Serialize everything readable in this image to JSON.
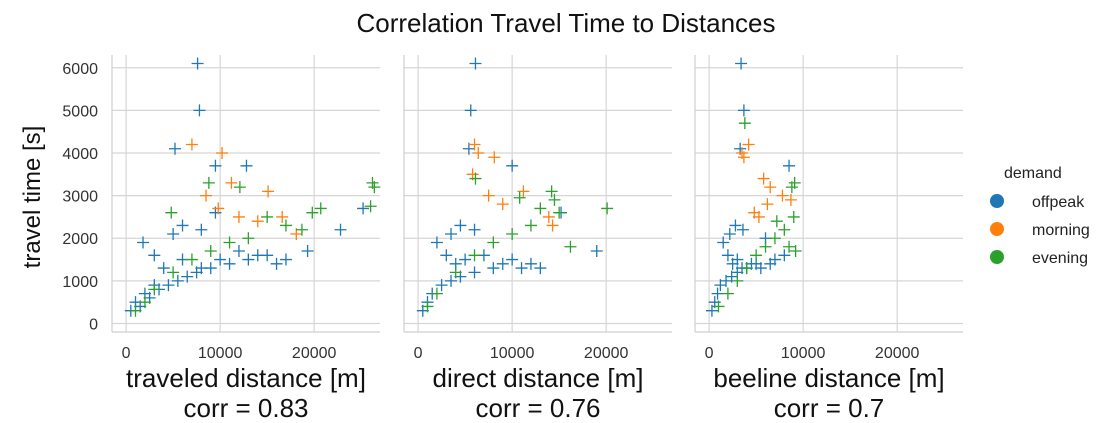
{
  "chart_data": {
    "type": "scatter",
    "title": "Correlation Travel Time to Distances",
    "ylabel": "travel time [s]",
    "ylim": [
      -200,
      6300
    ],
    "xlim": [
      -1500,
      27000
    ],
    "yticks": [
      0,
      1000,
      2000,
      3000,
      4000,
      5000,
      6000
    ],
    "xticks": [
      0,
      10000,
      20000
    ],
    "grid": true,
    "marker": "+",
    "legend": {
      "title": "demand",
      "placement": "right",
      "entries": [
        {
          "name": "offpeak",
          "color": "#1f77b4"
        },
        {
          "name": "morning",
          "color": "#ff7f0e"
        },
        {
          "name": "evening",
          "color": "#2ca02c"
        }
      ]
    },
    "panels": [
      {
        "xlabel": "traveled distance [m]",
        "corr_label": "corr = 0.83",
        "series": [
          {
            "name": "offpeak",
            "points": [
              [
                7600,
                6100
              ],
              [
                7800,
                5000
              ],
              [
                5200,
                4100
              ],
              [
                9500,
                3700
              ],
              [
                12800,
                3700
              ],
              [
                22800,
                2200
              ],
              [
                19300,
                1700
              ],
              [
                25200,
                2700
              ],
              [
                1800,
                1900
              ],
              [
                3000,
                1600
              ],
              [
                4000,
                1300
              ],
              [
                6000,
                1500
              ],
              [
                8000,
                1300
              ],
              [
                10000,
                1500
              ],
              [
                12000,
                1700
              ],
              [
                14000,
                1600
              ],
              [
                16000,
                1400
              ],
              [
                1000,
                500
              ],
              [
                2000,
                700
              ],
              [
                3000,
                900
              ],
              [
                500,
                300
              ],
              [
                1500,
                400
              ],
              [
                2500,
                600
              ],
              [
                3500,
                800
              ],
              [
                4500,
                900
              ],
              [
                5500,
                1000
              ],
              [
                6500,
                1100
              ],
              [
                7500,
                1200
              ],
              [
                9000,
                1300
              ],
              [
                11000,
                1400
              ],
              [
                13000,
                1500
              ],
              [
                15000,
                1600
              ],
              [
                17000,
                1500
              ],
              [
                5000,
                2100
              ],
              [
                6000,
                2300
              ],
              [
                8000,
                2200
              ],
              [
                9500,
                2600
              ]
            ]
          },
          {
            "name": "morning",
            "points": [
              [
                7000,
                4200
              ],
              [
                10200,
                4000
              ],
              [
                11200,
                3300
              ],
              [
                15100,
                3100
              ],
              [
                16600,
                2500
              ],
              [
                18100,
                2100
              ],
              [
                12000,
                2500
              ],
              [
                8500,
                3000
              ],
              [
                9800,
                2700
              ],
              [
                14000,
                2400
              ]
            ]
          },
          {
            "name": "evening",
            "points": [
              [
                26200,
                3300
              ],
              [
                26400,
                3200
              ],
              [
                26000,
                2750
              ],
              [
                20700,
                2700
              ],
              [
                8800,
                3300
              ],
              [
                12100,
                3200
              ],
              [
                4800,
                2600
              ],
              [
                17000,
                2300
              ],
              [
                18700,
                2200
              ],
              [
                15000,
                2500
              ],
              [
                13000,
                2000
              ],
              [
                11000,
                1900
              ],
              [
                9000,
                1700
              ],
              [
                7000,
                1500
              ],
              [
                5000,
                1200
              ],
              [
                3000,
                800
              ],
              [
                2000,
                500
              ],
              [
                1000,
                300
              ],
              [
                19800,
                2600
              ]
            ]
          }
        ]
      },
      {
        "xlabel": "direct distance [m]",
        "corr_label": "corr = 0.76",
        "series": [
          {
            "name": "offpeak",
            "points": [
              [
                6100,
                6100
              ],
              [
                5600,
                5000
              ],
              [
                5400,
                4100
              ],
              [
                10000,
                3700
              ],
              [
                19000,
                1700
              ],
              [
                15200,
                2600
              ],
              [
                2000,
                1900
              ],
              [
                3000,
                1600
              ],
              [
                4000,
                1400
              ],
              [
                5000,
                1500
              ],
              [
                7000,
                1600
              ],
              [
                9000,
                1400
              ],
              [
                11000,
                1300
              ],
              [
                500,
                300
              ],
              [
                1000,
                500
              ],
              [
                1500,
                700
              ],
              [
                2500,
                900
              ],
              [
                3500,
                1000
              ],
              [
                4500,
                1100
              ],
              [
                6000,
                1200
              ],
              [
                8000,
                1300
              ],
              [
                10000,
                1500
              ],
              [
                12000,
                1400
              ],
              [
                13000,
                1300
              ],
              [
                3500,
                2100
              ],
              [
                4500,
                2300
              ],
              [
                6000,
                2200
              ]
            ]
          },
          {
            "name": "morning",
            "points": [
              [
                6000,
                4200
              ],
              [
                6400,
                4000
              ],
              [
                8100,
                3900
              ],
              [
                5800,
                3500
              ],
              [
                11200,
                3100
              ],
              [
                13900,
                2500
              ],
              [
                14300,
                2300
              ],
              [
                9000,
                2800
              ],
              [
                7500,
                3000
              ]
            ]
          },
          {
            "name": "evening",
            "points": [
              [
                20100,
                2700
              ],
              [
                14500,
                2900
              ],
              [
                10800,
                2950
              ],
              [
                14200,
                3100
              ],
              [
                6100,
                3400
              ],
              [
                16200,
                1800
              ],
              [
                15000,
                2600
              ],
              [
                12000,
                2300
              ],
              [
                10000,
                2100
              ],
              [
                8000,
                1900
              ],
              [
                6000,
                1600
              ],
              [
                4000,
                1200
              ],
              [
                2000,
                700
              ],
              [
                1000,
                400
              ],
              [
                13000,
                2700
              ]
            ]
          }
        ]
      },
      {
        "xlabel": "beeline distance [m]",
        "corr_label": "corr = 0.7",
        "series": [
          {
            "name": "offpeak",
            "points": [
              [
                3400,
                6100
              ],
              [
                3700,
                5000
              ],
              [
                3300,
                4100
              ],
              [
                8500,
                3700
              ],
              [
                6000,
                2000
              ],
              [
                1500,
                1900
              ],
              [
                2000,
                1600
              ],
              [
                2500,
                1400
              ],
              [
                3000,
                1500
              ],
              [
                3500,
                1300
              ],
              [
                4500,
                1400
              ],
              [
                5500,
                1300
              ],
              [
                6500,
                1400
              ],
              [
                300,
                300
              ],
              [
                600,
                500
              ],
              [
                900,
                700
              ],
              [
                1200,
                900
              ],
              [
                1800,
                1000
              ],
              [
                2400,
                1100
              ],
              [
                3000,
                1200
              ],
              [
                4000,
                1300
              ],
              [
                5000,
                1400
              ],
              [
                7000,
                1500
              ],
              [
                8000,
                1600
              ],
              [
                2200,
                2100
              ],
              [
                2800,
                2300
              ],
              [
                3600,
                2200
              ]
            ]
          },
          {
            "name": "morning",
            "points": [
              [
                4200,
                4200
              ],
              [
                3500,
                4000
              ],
              [
                3700,
                3900
              ],
              [
                5800,
                3400
              ],
              [
                6200,
                2800
              ],
              [
                6500,
                3200
              ],
              [
                7800,
                3000
              ],
              [
                8700,
                2900
              ],
              [
                4800,
                2600
              ],
              [
                5300,
                2500
              ]
            ]
          },
          {
            "name": "evening",
            "points": [
              [
                3800,
                4700
              ],
              [
                9100,
                3300
              ],
              [
                8800,
                3200
              ],
              [
                9000,
                2500
              ],
              [
                8000,
                2200
              ],
              [
                7000,
                2000
              ],
              [
                6000,
                1800
              ],
              [
                5000,
                1600
              ],
              [
                4000,
                1300
              ],
              [
                3000,
                1000
              ],
              [
                2000,
                700
              ],
              [
                1000,
                400
              ],
              [
                8500,
                1800
              ],
              [
                9200,
                1700
              ],
              [
                7200,
                2400
              ]
            ]
          }
        ]
      }
    ]
  }
}
